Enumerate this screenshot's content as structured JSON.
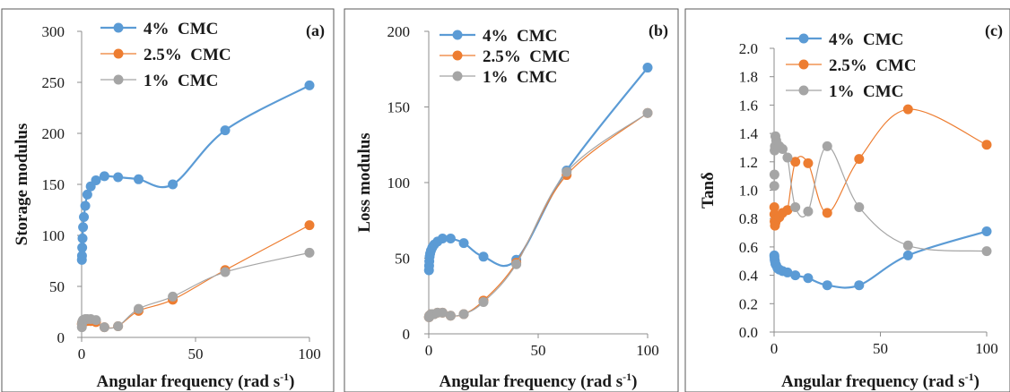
{
  "colors": {
    "cmc_4": "#5b9bd5",
    "cmc_2_5": "#ed7d31",
    "cmc_1": "#a5a5a5",
    "axis": "#8c8c8c",
    "frame": "#595959"
  },
  "chart_data": [
    {
      "type": "line",
      "panel_label": "(a)",
      "xlabel": "Angular frequency (rad s",
      "xlabel_sup": "-1",
      "xlabel_close": ")",
      "ylabel": "Storage modulus",
      "xlim": [
        0,
        100
      ],
      "ylim": [
        0,
        300
      ],
      "xticks": [
        0,
        50,
        100
      ],
      "yticks": [
        0,
        50,
        100,
        150,
        200,
        250,
        300
      ],
      "ytick_labels": [
        "0",
        "50",
        "100",
        "150",
        "200",
        "250",
        "300"
      ],
      "legend_position": "top-left",
      "series": [
        {
          "name": "4%  CMC",
          "color_key": "cmc_4",
          "x": [
            0.1,
            0.16,
            0.25,
            0.4,
            0.63,
            1,
            1.6,
            2.5,
            4,
            6.3,
            10,
            16,
            25,
            40,
            63,
            100
          ],
          "y": [
            76,
            80,
            88,
            97,
            108,
            118,
            129,
            140,
            148,
            154,
            158,
            157,
            155,
            150,
            203,
            247
          ]
        },
        {
          "name": "2.5%  CMC",
          "color_key": "cmc_2_5",
          "x": [
            0.1,
            0.16,
            0.25,
            0.4,
            0.63,
            1,
            1.6,
            2.5,
            4,
            6.3,
            10,
            16,
            25,
            40,
            63,
            100
          ],
          "y": [
            13,
            14,
            14,
            15,
            15,
            15,
            16,
            16,
            16,
            15,
            10,
            11,
            26,
            37,
            66,
            110
          ]
        },
        {
          "name": "1%  CMC",
          "color_key": "cmc_1",
          "x": [
            0.1,
            0.16,
            0.25,
            0.4,
            0.63,
            1,
            1.6,
            2.5,
            4,
            6.3,
            10,
            16,
            25,
            40,
            63,
            100
          ],
          "y": [
            10,
            13,
            15,
            16,
            17,
            17,
            18,
            18,
            18,
            17,
            10,
            11,
            28,
            40,
            64,
            83
          ]
        }
      ]
    },
    {
      "type": "line",
      "panel_label": "(b)",
      "xlabel": "Angular frequency (rad s",
      "xlabel_sup": "-1",
      "xlabel_close": ")",
      "ylabel": "Loss modulus",
      "xlim": [
        0,
        100
      ],
      "ylim": [
        0,
        200
      ],
      "xticks": [
        0,
        50,
        100
      ],
      "yticks": [
        0,
        50,
        100,
        150,
        200
      ],
      "ytick_labels": [
        "0",
        "50",
        "100",
        "150",
        "200"
      ],
      "legend_position": "top-left",
      "series": [
        {
          "name": "4%  CMC",
          "color_key": "cmc_4",
          "x": [
            0.1,
            0.16,
            0.25,
            0.4,
            0.63,
            1,
            1.6,
            2.5,
            4,
            6.3,
            10,
            16,
            25,
            40,
            63,
            100
          ],
          "y": [
            42,
            45,
            48,
            51,
            53,
            55,
            57,
            59,
            61,
            63,
            63,
            60,
            51,
            49,
            108,
            176
          ]
        },
        {
          "name": "2.5%  CMC",
          "color_key": "cmc_2_5",
          "x": [
            0.1,
            0.16,
            0.25,
            0.4,
            0.63,
            1,
            1.6,
            2.5,
            4,
            6.3,
            10,
            16,
            25,
            40,
            63,
            100
          ],
          "y": [
            11,
            11,
            12,
            12,
            12,
            13,
            13,
            13,
            14,
            14,
            12,
            13,
            22,
            47,
            105,
            146
          ]
        },
        {
          "name": "1%  CMC",
          "color_key": "cmc_1",
          "x": [
            0.1,
            0.16,
            0.25,
            0.4,
            0.63,
            1,
            1.6,
            2.5,
            4,
            6.3,
            10,
            16,
            25,
            40,
            63,
            100
          ],
          "y": [
            11,
            11,
            12,
            12,
            12,
            13,
            13,
            13,
            14,
            14,
            12,
            13,
            21,
            46,
            107,
            146
          ]
        }
      ]
    },
    {
      "type": "line",
      "panel_label": "(c)",
      "xlabel": "Angular frequency (rad s",
      "xlabel_sup": "-1",
      "xlabel_close": ")",
      "ylabel": "Tanδ",
      "xlim": [
        0,
        100
      ],
      "ylim": [
        0,
        2.0
      ],
      "xticks": [
        0,
        50,
        100
      ],
      "yticks": [
        0,
        0.2,
        0.4,
        0.6,
        0.8,
        1.0,
        1.2,
        1.4,
        1.6,
        1.8,
        2.0
      ],
      "ytick_labels": [
        "0.0",
        "0.2",
        "0.4",
        "0.6",
        "0.8",
        "1.0",
        "1.2",
        "1.4",
        "1.6",
        "1.8",
        "2.0"
      ],
      "legend_position": "top-left",
      "series": [
        {
          "name": "4%  CMC",
          "color_key": "cmc_4",
          "x": [
            0.1,
            0.16,
            0.25,
            0.4,
            0.63,
            1,
            1.6,
            2.5,
            4,
            6.3,
            10,
            16,
            25,
            40,
            63,
            100
          ],
          "y": [
            0.54,
            0.53,
            0.51,
            0.5,
            0.48,
            0.47,
            0.45,
            0.44,
            0.43,
            0.42,
            0.4,
            0.38,
            0.33,
            0.33,
            0.54,
            0.71
          ]
        },
        {
          "name": "2.5%  CMC",
          "color_key": "cmc_2_5",
          "x": [
            0.1,
            0.16,
            0.25,
            0.4,
            0.63,
            1,
            1.6,
            2.5,
            4,
            6.3,
            10,
            16,
            25,
            40,
            63,
            100
          ],
          "y": [
            0.88,
            0.83,
            0.78,
            0.75,
            0.77,
            0.79,
            0.8,
            0.81,
            0.84,
            0.86,
            1.2,
            1.19,
            0.84,
            1.22,
            1.57,
            1.32
          ]
        },
        {
          "name": "1%  CMC",
          "color_key": "cmc_1",
          "x": [
            0.1,
            0.16,
            0.25,
            0.4,
            0.63,
            1,
            1.6,
            2.5,
            4,
            6.3,
            10,
            16,
            25,
            40,
            63,
            100
          ],
          "y": [
            1.03,
            1.11,
            1.28,
            1.31,
            1.38,
            1.35,
            1.32,
            1.31,
            1.29,
            1.23,
            0.88,
            0.85,
            1.31,
            0.88,
            0.61,
            0.57
          ]
        }
      ]
    }
  ]
}
